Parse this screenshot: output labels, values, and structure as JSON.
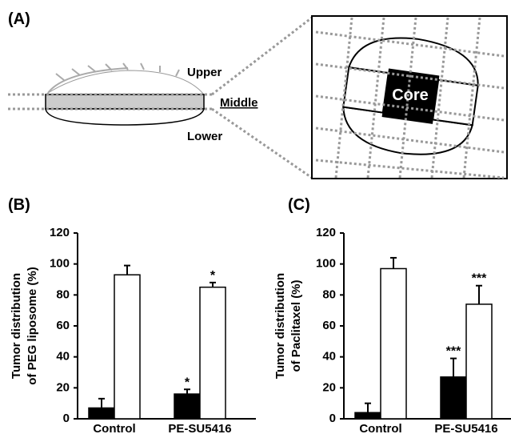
{
  "diagram": {
    "panel": "(A)",
    "layers": [
      "Upper",
      "Middle",
      "Lower"
    ],
    "core": "Core"
  },
  "chart_data": [
    {
      "type": "bar",
      "panel": "(B)",
      "ylabel": [
        "Tumor distribution",
        "of PEG liposome (%)"
      ],
      "categories": [
        "Control",
        "PE-SU5416"
      ],
      "series": [
        {
          "color": "#000000",
          "values": [
            7,
            16
          ],
          "errors": [
            6,
            3
          ],
          "annotations": [
            null,
            "*"
          ]
        },
        {
          "color": "#ffffff",
          "values": [
            93,
            85
          ],
          "errors": [
            6,
            3
          ],
          "annotations": [
            null,
            "*"
          ]
        }
      ],
      "ylim": [
        0,
        120
      ],
      "yticks": [
        0,
        20,
        40,
        60,
        80,
        100,
        120
      ]
    },
    {
      "type": "bar",
      "panel": "(C)",
      "ylabel": [
        "Tumor distribution",
        "of Paclitaxel (%)"
      ],
      "categories": [
        "Control",
        "PE-SU5416"
      ],
      "series": [
        {
          "color": "#000000",
          "values": [
            4,
            27
          ],
          "errors": [
            6,
            12
          ],
          "annotations": [
            null,
            "***"
          ]
        },
        {
          "color": "#ffffff",
          "values": [
            97,
            74
          ],
          "errors": [
            7,
            12
          ],
          "annotations": [
            null,
            "***"
          ]
        }
      ],
      "ylim": [
        0,
        120
      ],
      "yticks": [
        0,
        20,
        40,
        60,
        80,
        100,
        120
      ]
    }
  ]
}
